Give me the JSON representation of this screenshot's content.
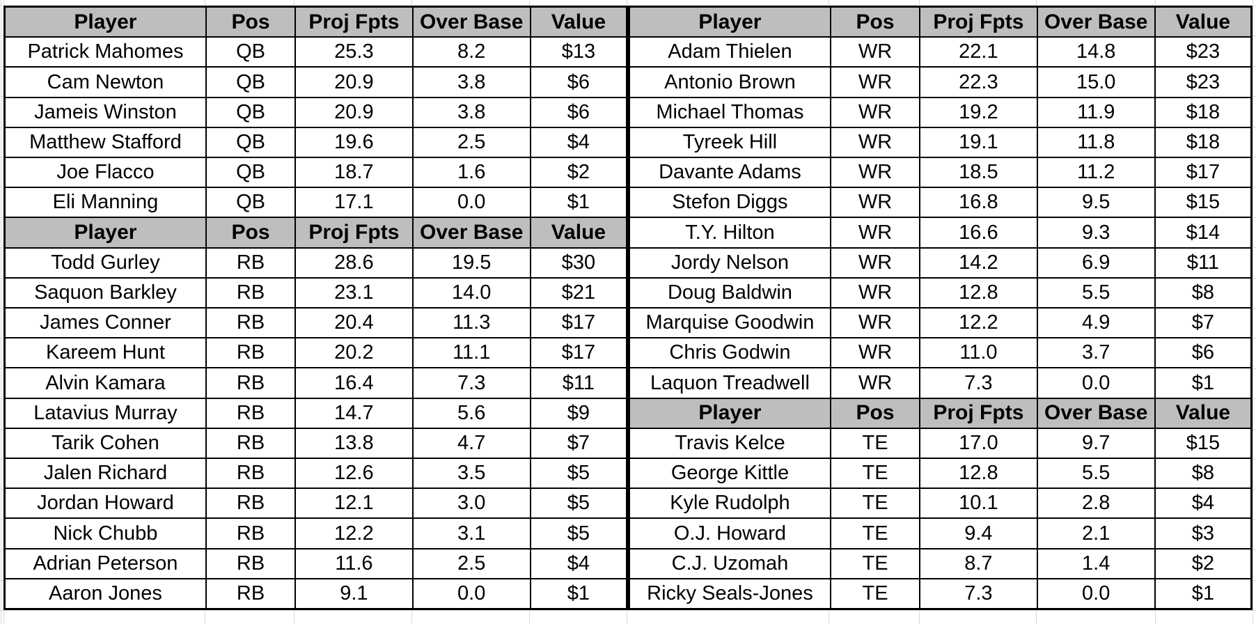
{
  "colors": {
    "header_bg": "#bebebe",
    "row_bg": "#ffffff",
    "border": "#000000",
    "text": "#000000",
    "gridline": "#d8d8d8"
  },
  "chart_data": {
    "type": "table",
    "columns": [
      "Player",
      "Pos",
      "Proj Fpts",
      "Over Base",
      "Value"
    ],
    "tables": [
      {
        "side": "left",
        "sections": [
          {
            "group": "QB",
            "header": [
              "Player",
              "Pos",
              "Proj Fpts",
              "Over Base",
              "Value"
            ],
            "rows": [
              [
                "Patrick Mahomes",
                "QB",
                "25.3",
                "8.2",
                "$13"
              ],
              [
                "Cam Newton",
                "QB",
                "20.9",
                "3.8",
                "$6"
              ],
              [
                "Jameis Winston",
                "QB",
                "20.9",
                "3.8",
                "$6"
              ],
              [
                "Matthew Stafford",
                "QB",
                "19.6",
                "2.5",
                "$4"
              ],
              [
                "Joe Flacco",
                "QB",
                "18.7",
                "1.6",
                "$2"
              ],
              [
                "Eli Manning",
                "QB",
                "17.1",
                "0.0",
                "$1"
              ]
            ]
          },
          {
            "group": "RB",
            "header": [
              "Player",
              "Pos",
              "Proj Fpts",
              "Over Base",
              "Value"
            ],
            "rows": [
              [
                "Todd Gurley",
                "RB",
                "28.6",
                "19.5",
                "$30"
              ],
              [
                "Saquon Barkley",
                "RB",
                "23.1",
                "14.0",
                "$21"
              ],
              [
                "James Conner",
                "RB",
                "20.4",
                "11.3",
                "$17"
              ],
              [
                "Kareem Hunt",
                "RB",
                "20.2",
                "11.1",
                "$17"
              ],
              [
                "Alvin Kamara",
                "RB",
                "16.4",
                "7.3",
                "$11"
              ],
              [
                "Latavius Murray",
                "RB",
                "14.7",
                "5.6",
                "$9"
              ],
              [
                "Tarik Cohen",
                "RB",
                "13.8",
                "4.7",
                "$7"
              ],
              [
                "Jalen Richard",
                "RB",
                "12.6",
                "3.5",
                "$5"
              ],
              [
                "Jordan Howard",
                "RB",
                "12.1",
                "3.0",
                "$5"
              ],
              [
                "Nick Chubb",
                "RB",
                "12.2",
                "3.1",
                "$5"
              ],
              [
                "Adrian Peterson",
                "RB",
                "11.6",
                "2.5",
                "$4"
              ],
              [
                "Aaron Jones",
                "RB",
                "9.1",
                "0.0",
                "$1"
              ]
            ]
          }
        ]
      },
      {
        "side": "right",
        "sections": [
          {
            "group": "WR",
            "header": [
              "Player",
              "Pos",
              "Proj Fpts",
              "Over Base",
              "Value"
            ],
            "rows": [
              [
                "Adam Thielen",
                "WR",
                "22.1",
                "14.8",
                "$23"
              ],
              [
                "Antonio Brown",
                "WR",
                "22.3",
                "15.0",
                "$23"
              ],
              [
                "Michael Thomas",
                "WR",
                "19.2",
                "11.9",
                "$18"
              ],
              [
                "Tyreek Hill",
                "WR",
                "19.1",
                "11.8",
                "$18"
              ],
              [
                "Davante Adams",
                "WR",
                "18.5",
                "11.2",
                "$17"
              ],
              [
                "Stefon Diggs",
                "WR",
                "16.8",
                "9.5",
                "$15"
              ],
              [
                "T.Y. Hilton",
                "WR",
                "16.6",
                "9.3",
                "$14"
              ],
              [
                "Jordy Nelson",
                "WR",
                "14.2",
                "6.9",
                "$11"
              ],
              [
                "Doug Baldwin",
                "WR",
                "12.8",
                "5.5",
                "$8"
              ],
              [
                "Marquise Goodwin",
                "WR",
                "12.2",
                "4.9",
                "$7"
              ],
              [
                "Chris Godwin",
                "WR",
                "11.0",
                "3.7",
                "$6"
              ],
              [
                "Laquon Treadwell",
                "WR",
                "7.3",
                "0.0",
                "$1"
              ]
            ]
          },
          {
            "group": "TE",
            "header": [
              "Player",
              "Pos",
              "Proj Fpts",
              "Over Base",
              "Value"
            ],
            "rows": [
              [
                "Travis Kelce",
                "TE",
                "17.0",
                "9.7",
                "$15"
              ],
              [
                "George Kittle",
                "TE",
                "12.8",
                "5.5",
                "$8"
              ],
              [
                "Kyle Rudolph",
                "TE",
                "10.1",
                "2.8",
                "$4"
              ],
              [
                "O.J. Howard",
                "TE",
                "9.4",
                "2.1",
                "$3"
              ],
              [
                "C.J. Uzomah",
                "TE",
                "8.7",
                "1.4",
                "$2"
              ],
              [
                "Ricky Seals-Jones",
                "TE",
                "7.3",
                "0.0",
                "$1"
              ]
            ]
          }
        ]
      }
    ]
  }
}
